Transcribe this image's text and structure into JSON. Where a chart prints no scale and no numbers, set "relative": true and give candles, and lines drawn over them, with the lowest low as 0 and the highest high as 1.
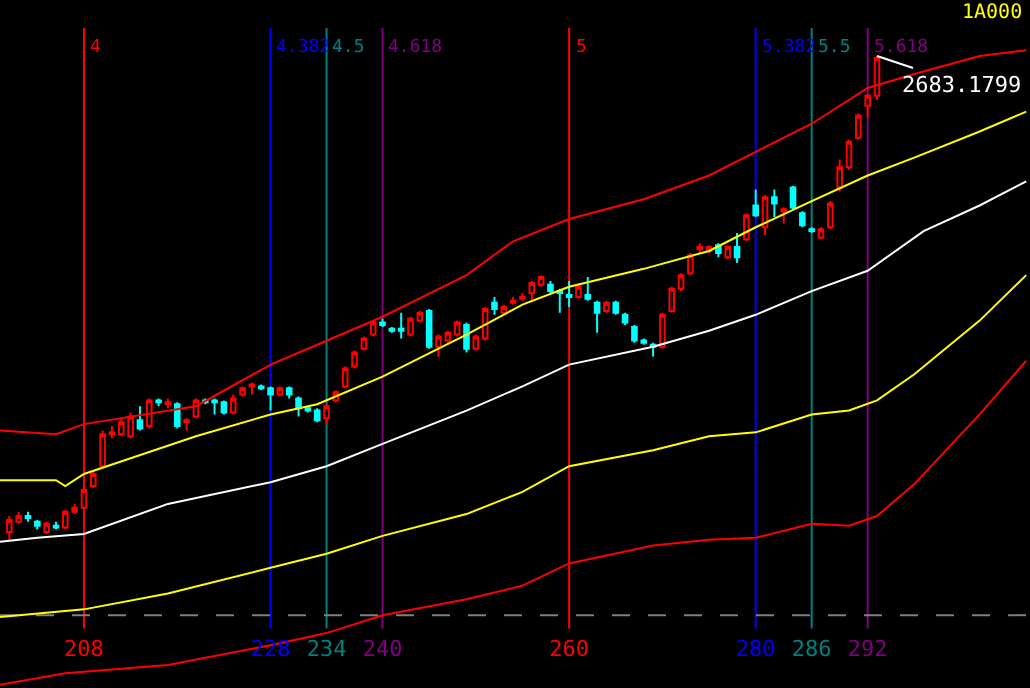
{
  "chart_data": {
    "type": "candlestick",
    "relative": true,
    "grid": false,
    "tick_labels": "x",
    "x": [
      200,
      201,
      202,
      203,
      204,
      205,
      206,
      207,
      208,
      209,
      210,
      211,
      212,
      213,
      214,
      215,
      216,
      217,
      218,
      219,
      220,
      221,
      222,
      223,
      224,
      225,
      226,
      227,
      228,
      229,
      230,
      231,
      232,
      233,
      234,
      235,
      236,
      237,
      238,
      239,
      240,
      241,
      242,
      243,
      244,
      245,
      246,
      247,
      248,
      249,
      250,
      251,
      252,
      253,
      254,
      255,
      256,
      257,
      258,
      259,
      260,
      261,
      262,
      263,
      264,
      265,
      266,
      267,
      268,
      269,
      270,
      271,
      272,
      273,
      274,
      275,
      276,
      277,
      278,
      279,
      280,
      281,
      282,
      283,
      284,
      285,
      286,
      287,
      288,
      289,
      290,
      291,
      292,
      293
    ],
    "ohlc": [
      [
        0.016,
        0.049,
        0,
        0.041
      ],
      [
        0.037,
        0.058,
        0.033,
        0.049
      ],
      [
        0.049,
        0.058,
        0.037,
        0.045
      ],
      [
        0.037,
        0.041,
        0.021,
        0.029
      ],
      [
        0.016,
        0.037,
        0.012,
        0.033
      ],
      [
        0.029,
        0.037,
        0.021,
        0.025
      ],
      [
        0.025,
        0.062,
        0.021,
        0.058
      ],
      [
        0.058,
        0.074,
        0.053,
        0.066
      ],
      [
        0.066,
        0.111,
        0.062,
        0.103
      ],
      [
        0.111,
        0.144,
        0.107,
        0.136
      ],
      [
        0.152,
        0.226,
        0.148,
        0.218
      ],
      [
        0.218,
        0.235,
        0.21,
        0.222
      ],
      [
        0.218,
        0.251,
        0.214,
        0.243
      ],
      [
        0.214,
        0.263,
        0.21,
        0.255
      ],
      [
        0.247,
        0.276,
        0.226,
        0.23
      ],
      [
        0.235,
        0.292,
        0.23,
        0.288
      ],
      [
        0.288,
        0.292,
        0.276,
        0.284
      ],
      [
        0.28,
        0.292,
        0.272,
        0.284
      ],
      [
        0.28,
        0.284,
        0.23,
        0.235
      ],
      [
        0.243,
        0.251,
        0.226,
        0.247
      ],
      [
        0.255,
        0.292,
        0.251,
        0.288
      ],
      [
        0.288,
        0.292,
        0.28,
        0.284
      ],
      [
        0.288,
        0.292,
        0.259,
        0.284
      ],
      [
        0.284,
        0.288,
        0.259,
        0.263
      ],
      [
        0.263,
        0.3,
        0.259,
        0.292
      ],
      [
        0.3,
        0.317,
        0.296,
        0.313
      ],
      [
        0.317,
        0.325,
        0.3,
        0.321
      ],
      [
        0.317,
        0.321,
        0.309,
        0.313
      ],
      [
        0.313,
        0.317,
        0.267,
        0.3
      ],
      [
        0.3,
        0.317,
        0.296,
        0.313
      ],
      [
        0.313,
        0.317,
        0.292,
        0.3
      ],
      [
        0.292,
        0.296,
        0.255,
        0.272
      ],
      [
        0.272,
        0.276,
        0.263,
        0.267
      ],
      [
        0.267,
        0.272,
        0.243,
        0.247
      ],
      [
        0.251,
        0.28,
        0.239,
        0.276
      ],
      [
        0.288,
        0.309,
        0.284,
        0.305
      ],
      [
        0.317,
        0.358,
        0.313,
        0.354
      ],
      [
        0.358,
        0.391,
        0.354,
        0.387
      ],
      [
        0.395,
        0.42,
        0.391,
        0.416
      ],
      [
        0.424,
        0.453,
        0.42,
        0.449
      ],
      [
        0.449,
        0.457,
        0.44,
        0.444
      ],
      [
        0.436,
        0.44,
        0.428,
        0.432
      ],
      [
        0.436,
        0.469,
        0.416,
        0.432
      ],
      [
        0.424,
        0.461,
        0.42,
        0.457
      ],
      [
        0.453,
        0.473,
        0.449,
        0.469
      ],
      [
        0.473,
        0.477,
        0.395,
        0.399
      ],
      [
        0.399,
        0.424,
        0.379,
        0.42
      ],
      [
        0.412,
        0.432,
        0.407,
        0.428
      ],
      [
        0.424,
        0.453,
        0.42,
        0.449
      ],
      [
        0.444,
        0.449,
        0.387,
        0.395
      ],
      [
        0.395,
        0.424,
        0.391,
        0.42
      ],
      [
        0.416,
        0.481,
        0.412,
        0.477
      ],
      [
        0.49,
        0.502,
        0.465,
        0.477
      ],
      [
        0.469,
        0.486,
        0.465,
        0.481
      ],
      [
        0.49,
        0.502,
        0.486,
        0.494
      ],
      [
        0.498,
        0.51,
        0.494,
        0.502
      ],
      [
        0.51,
        0.535,
        0.494,
        0.531
      ],
      [
        0.527,
        0.547,
        0.523,
        0.543
      ],
      [
        0.527,
        0.535,
        0.51,
        0.514
      ],
      [
        0.514,
        0.519,
        0.469,
        0.51
      ],
      [
        0.506,
        0.535,
        0.481,
        0.502
      ],
      [
        0.502,
        0.527,
        0.498,
        0.523
      ],
      [
        0.506,
        0.543,
        0.494,
        0.498
      ],
      [
        0.49,
        0.494,
        0.428,
        0.469
      ],
      [
        0.473,
        0.494,
        0.469,
        0.49
      ],
      [
        0.49,
        0.494,
        0.465,
        0.469
      ],
      [
        0.465,
        0.469,
        0.444,
        0.449
      ],
      [
        0.44,
        0.444,
        0.407,
        0.412
      ],
      [
        0.412,
        0.416,
        0.403,
        0.407
      ],
      [
        0.403,
        0.407,
        0.379,
        0.399
      ],
      [
        0.399,
        0.469,
        0.395,
        0.465
      ],
      [
        0.473,
        0.523,
        0.469,
        0.519
      ],
      [
        0.519,
        0.551,
        0.514,
        0.547
      ],
      [
        0.551,
        0.593,
        0.547,
        0.588
      ],
      [
        0.601,
        0.613,
        0.593,
        0.605
      ],
      [
        0.597,
        0.609,
        0.593,
        0.605
      ],
      [
        0.609,
        0.613,
        0.584,
        0.593
      ],
      [
        0.584,
        0.609,
        0.58,
        0.605
      ],
      [
        0.605,
        0.634,
        0.572,
        0.584
      ],
      [
        0.621,
        0.675,
        0.617,
        0.671
      ],
      [
        0.691,
        0.724,
        0.667,
        0.671
      ],
      [
        0.646,
        0.712,
        0.63,
        0.708
      ],
      [
        0.708,
        0.724,
        0.667,
        0.695
      ],
      [
        0.679,
        0.687,
        0.654,
        0.683
      ],
      [
        0.728,
        0.732,
        0.683,
        0.687
      ],
      [
        0.675,
        0.679,
        0.646,
        0.65
      ],
      [
        0.642,
        0.646,
        0.634,
        0.638
      ],
      [
        0.625,
        0.646,
        0.621,
        0.642
      ],
      [
        0.646,
        0.7,
        0.642,
        0.695
      ],
      [
        0.728,
        0.786,
        0.72,
        0.77
      ],
      [
        0.77,
        0.827,
        0.765,
        0.823
      ],
      [
        0.831,
        0.881,
        0.827,
        0.877
      ],
      [
        0.897,
        0.922,
        0.872,
        0.918
      ],
      [
        0.918,
        1.0,
        0.909,
        0.996
      ]
    ],
    "colors": [
      "#ff0000",
      "#ff0000",
      "#00ffff",
      "#00ffff",
      "#ff0000",
      "#00ffff",
      "#ff0000",
      "#ff0000",
      "#ff0000",
      "#ff0000",
      "#ff0000",
      "#ff0000",
      "#ff0000",
      "#ff0000",
      "#00ffff",
      "#ff0000",
      "#00ffff",
      "#ff0000",
      "#00ffff",
      "#ff0000",
      "#ff0000",
      "#00ffff",
      "#00ffff",
      "#00ffff",
      "#ff0000",
      "#ff0000",
      "#ff0000",
      "#00ffff",
      "#00ffff",
      "#ff0000",
      "#00ffff",
      "#00ffff",
      "#00ffff",
      "#00ffff",
      "#ff0000",
      "#ff0000",
      "#ff0000",
      "#ff0000",
      "#ff0000",
      "#ff0000",
      "#00ffff",
      "#00ffff",
      "#00ffff",
      "#ff0000",
      "#ff0000",
      "#00ffff",
      "#ff0000",
      "#ff0000",
      "#ff0000",
      "#00ffff",
      "#ff0000",
      "#ff0000",
      "#00ffff",
      "#ff0000",
      "#ff0000",
      "#ff0000",
      "#ff0000",
      "#ff0000",
      "#00ffff",
      "#00ffff",
      "#00ffff",
      "#ff0000",
      "#00ffff",
      "#00ffff",
      "#ff0000",
      "#00ffff",
      "#00ffff",
      "#00ffff",
      "#00ffff",
      "#00ffff",
      "#ff0000",
      "#ff0000",
      "#ff0000",
      "#ff0000",
      "#ff0000",
      "#ff0000",
      "#00ffff",
      "#ff0000",
      "#00ffff",
      "#ff0000",
      "#00ffff",
      "#ff0000",
      "#00ffff",
      "#ff0000",
      "#00ffff",
      "#00ffff",
      "#00ffff",
      "#ff0000",
      "#ff0000",
      "#ff0000",
      "#ff0000",
      "#ff0000",
      "#ff0000",
      "#ff0000"
    ],
    "series": [
      {
        "type": "line",
        "color": "#ff0000",
        "x": [
          199,
          205,
          208,
          220,
          228,
          233,
          240,
          249,
          254,
          260,
          268,
          275,
          280,
          286,
          292,
          297,
          304,
          309
        ],
        "values": [
          0.226,
          0.218,
          0.239,
          0.276,
          0.362,
          0.403,
          0.461,
          0.547,
          0.617,
          0.663,
          0.704,
          0.753,
          0.802,
          0.86,
          0.934,
          0.963,
          1.0,
          1.012
        ]
      },
      {
        "type": "line",
        "color": "#ffff00",
        "x": [
          199,
          205,
          206,
          208,
          220,
          228,
          233,
          240,
          249,
          255,
          260,
          268,
          275,
          280,
          286,
          292,
          297,
          304,
          309
        ],
        "values": [
          0.123,
          0.123,
          0.111,
          0.136,
          0.214,
          0.259,
          0.28,
          0.337,
          0.424,
          0.486,
          0.523,
          0.56,
          0.597,
          0.646,
          0.7,
          0.753,
          0.79,
          0.844,
          0.885
        ]
      },
      {
        "type": "line",
        "color": "#ffffff",
        "x": [
          199,
          203,
          208,
          217,
          228,
          234,
          240,
          249,
          255,
          260,
          269,
          275,
          280,
          286,
          292,
          298,
          304,
          309
        ],
        "values": [
          -0.004,
          0.004,
          0.012,
          0.074,
          0.119,
          0.152,
          0.198,
          0.267,
          0.317,
          0.362,
          0.399,
          0.432,
          0.465,
          0.514,
          0.556,
          0.638,
          0.691,
          0.741
        ]
      },
      {
        "type": "line",
        "color": "#ffff00",
        "x": [
          199,
          208,
          217,
          228,
          234,
          240,
          249,
          255,
          260,
          269,
          275,
          280,
          286,
          290,
          293,
          297,
          304,
          309
        ],
        "values": [
          -0.16,
          -0.144,
          -0.111,
          -0.058,
          -0.029,
          0.008,
          0.053,
          0.099,
          0.152,
          0.185,
          0.214,
          0.222,
          0.259,
          0.267,
          0.288,
          0.342,
          0.453,
          0.547
        ]
      },
      {
        "type": "line",
        "color": "#ff0000",
        "x": [
          199,
          206,
          217,
          228,
          234,
          240,
          249,
          255,
          260,
          269,
          275,
          280,
          286,
          290,
          293,
          297,
          304,
          309
        ],
        "values": [
          -0.3,
          -0.276,
          -0.259,
          -0.218,
          -0.193,
          -0.156,
          -0.123,
          -0.095,
          -0.049,
          -0.012,
          0,
          0.004,
          0.033,
          0.029,
          0.049,
          0.115,
          0.259,
          0.37
        ]
      }
    ],
    "xlim": [
      199,
      309.4
    ],
    "xticks": [
      208,
      228,
      234,
      240,
      260,
      280,
      286,
      292
    ],
    "ref_lines": [
      {
        "axis": "x",
        "value": 208,
        "color": "#ff0000"
      },
      {
        "axis": "x",
        "value": 228,
        "color": "#0000ff"
      },
      {
        "axis": "x",
        "value": 234,
        "color": "#008080"
      },
      {
        "axis": "x",
        "value": 240,
        "color": "#800080"
      },
      {
        "axis": "x",
        "value": 260,
        "color": "#ff0000"
      },
      {
        "axis": "x",
        "value": 280,
        "color": "#0000ff"
      },
      {
        "axis": "x",
        "value": 286,
        "color": "#008080"
      },
      {
        "axis": "x",
        "value": 292,
        "color": "#800080"
      },
      {
        "axis": "y",
        "value": -0.156,
        "color": "#808080",
        "line_style": "dashed"
      }
    ],
    "annotations": [
      {
        "text": "2683.1799",
        "x": 293,
        "y": 1.0
      },
      "1A000",
      {
        "text": "4",
        "x": 208
      },
      {
        "text": "4.382",
        "x": 228
      },
      {
        "text": "4.5",
        "x": 234
      },
      {
        "text": "4.618",
        "x": 240
      },
      {
        "text": "5",
        "x": 260
      },
      {
        "text": "5.382",
        "x": 280
      },
      {
        "text": "5.5",
        "x": 286
      },
      {
        "text": "5.618",
        "x": 292
      }
    ]
  }
}
